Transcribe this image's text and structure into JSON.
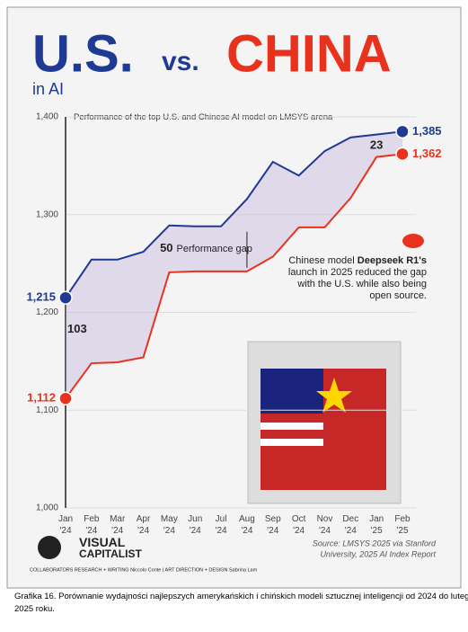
{
  "chart_data": {
    "type": "line",
    "title": {
      "part1": "U.S.",
      "part2": "vs.",
      "part3": "CHINA",
      "part4": "in AI"
    },
    "subtitle": "Performance of the top U.S. and Chinese AI model on LMSYS arena",
    "categories": [
      "Jan '24",
      "Feb '24",
      "Mar '24",
      "Apr '24",
      "May '24",
      "Jun '24",
      "Jul '24",
      "Aug '24",
      "Sep '24",
      "Oct '24",
      "Nov '24",
      "Dec '24",
      "Jan '25",
      "Feb '25"
    ],
    "series": [
      {
        "name": "U.S.",
        "color": "#1f3a93",
        "values": [
          1215,
          1254,
          1254,
          1262,
          1289,
          1288,
          1288,
          1316,
          1354,
          1340,
          1365,
          1379,
          1382,
          1385
        ],
        "value_labels": [
          "1,215",
          null,
          null,
          null,
          null,
          null,
          null,
          null,
          null,
          null,
          null,
          null,
          null,
          "1,385"
        ]
      },
      {
        "name": "China",
        "color": "#e8321e",
        "values": [
          1112,
          1148,
          1149,
          1154,
          1241,
          1242,
          1242,
          1242,
          1257,
          1287,
          1287,
          1317,
          1359,
          1362
        ],
        "value_labels": [
          "1,112",
          null,
          null,
          null,
          null,
          null,
          null,
          null,
          null,
          null,
          null,
          null,
          null,
          "1,362"
        ]
      }
    ],
    "ylim": [
      1000,
      1400
    ],
    "yticks": [
      {
        "value": 1000,
        "label": "1,000"
      },
      {
        "value": 1100,
        "label": "1,100"
      },
      {
        "value": 1200,
        "label": "1,200"
      },
      {
        "value": 1300,
        "label": "1,300"
      },
      {
        "value": 1400,
        "label": "1,400"
      }
    ],
    "grid": true,
    "annotations": {
      "gap_start": "103",
      "gap_mid_value": "50",
      "gap_mid_text": "Performance gap",
      "gap_end": "23",
      "deepseek": [
        "Chinese model ",
        "Deepseek R1's",
        "launch in 2025 reduced the gap",
        "with the U.S. while also being",
        "open source."
      ]
    },
    "source": [
      "Source: LMSYS 2025 via Stanford",
      "University, 2025 AI Index Report"
    ],
    "brand": [
      "VISUAL",
      "CAPITALIST"
    ],
    "credits": "COLLABORATORS   RESEARCH + WRITING Niccolo Conte  |  ART DIRECTION + DESIGN Sabrina Lam"
  },
  "caption": "Grafika 16. Porównanie wydajności najlepszych amerykańskich i chińskich modeli sztucznej inteligencji od 2024 do lutego 2025 roku."
}
